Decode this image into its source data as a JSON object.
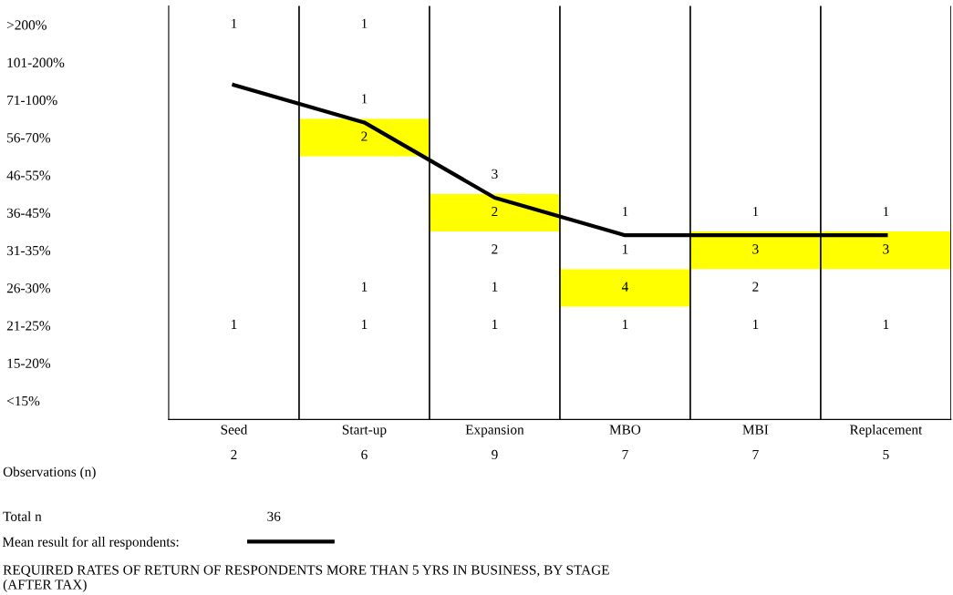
{
  "chart_data": {
    "type": "heatmap",
    "title": "REQUIRED RATES OF RETURN OF RESPONDENTS MORE THAN 5 YRS IN BUSINESS, BY STAGE\n(AFTER TAX)",
    "categories": [
      "Seed",
      "Start-up",
      "Expansion",
      "MBO",
      "MBI",
      "Replacement"
    ],
    "y_categories": [
      ">200%",
      "101-200%",
      "71-100%",
      "56-70%",
      "46-55%",
      "36-45%",
      "31-35%",
      "26-30%",
      "21-25%",
      "15-20%",
      "<15%"
    ],
    "cells": [
      [
        1,
        1,
        null,
        null,
        null,
        null
      ],
      [
        null,
        null,
        null,
        null,
        null,
        null
      ],
      [
        null,
        1,
        null,
        null,
        null,
        null
      ],
      [
        null,
        2,
        null,
        null,
        null,
        null
      ],
      [
        null,
        null,
        3,
        null,
        null,
        null
      ],
      [
        null,
        null,
        2,
        1,
        1,
        1
      ],
      [
        null,
        null,
        2,
        1,
        3,
        3
      ],
      [
        null,
        1,
        1,
        4,
        2,
        null
      ],
      [
        1,
        1,
        1,
        1,
        1,
        1
      ],
      [
        null,
        null,
        null,
        null,
        null,
        null
      ],
      [
        null,
        null,
        null,
        null,
        null,
        null
      ]
    ],
    "colors": [
      [
        null,
        null,
        null,
        null,
        null,
        null
      ],
      [
        null,
        null,
        null,
        null,
        null,
        null
      ],
      [
        null,
        null,
        null,
        null,
        null,
        null
      ],
      [
        null,
        "#ffff00",
        null,
        null,
        null,
        null
      ],
      [
        null,
        null,
        null,
        null,
        null,
        null
      ],
      [
        null,
        null,
        "#ffff00",
        null,
        null,
        null
      ],
      [
        null,
        null,
        null,
        null,
        "#ffff00",
        "#ffff00"
      ],
      [
        null,
        null,
        null,
        "#ffff00",
        null,
        null
      ],
      [
        null,
        null,
        null,
        null,
        null,
        null
      ],
      [
        null,
        null,
        null,
        null,
        null,
        null
      ],
      [
        null,
        null,
        null,
        null,
        null,
        null
      ]
    ],
    "series": [
      {
        "type": "line",
        "name": "Mean result for all respondents:",
        "color": "#000000",
        "values": [
          1.6,
          2.6,
          4.6,
          5.6,
          5.6,
          5.6
        ],
        "value_labels": [
          null,
          null,
          null,
          null,
          null,
          null
        ]
      }
    ],
    "totals": [
      "2",
      "6",
      "9",
      "7",
      "7",
      "5"
    ],
    "annotations": [
      "Observations (n)",
      "Total n",
      "36"
    ],
    "legend": "bottom left",
    "data_labels": true,
    "grid": "x"
  }
}
